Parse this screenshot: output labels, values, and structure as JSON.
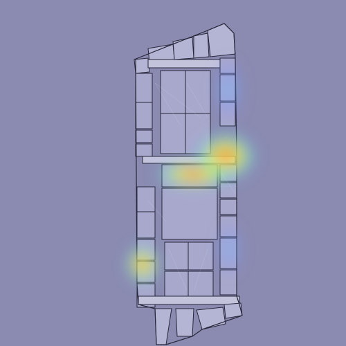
{
  "map": {
    "kind": "floorplan-heatmap",
    "colors": {
      "background": "#8b8bb1",
      "room_fill": "#a8a8cc",
      "room_fill_light": "#b4b4d4",
      "corridor_fill": "#c3c3dc",
      "wall": "#26263a",
      "heat_low": "#7f8cff",
      "heat_mid": "#53e0ff",
      "heat_high_1": "#a9ff57",
      "heat_high_2": "#ffe34c",
      "heat_peak": "#ff5a3c"
    },
    "heat_hotspots": [
      {
        "name": "upper-right-corridor",
        "intensity": 1.0
      },
      {
        "name": "central-hall-top",
        "intensity": 0.95
      },
      {
        "name": "left-wing-room",
        "intensity": 0.9
      },
      {
        "name": "upper-corridor-right",
        "intensity": 0.45
      },
      {
        "name": "lower-right-rooms",
        "intensity": 0.35
      }
    ]
  }
}
